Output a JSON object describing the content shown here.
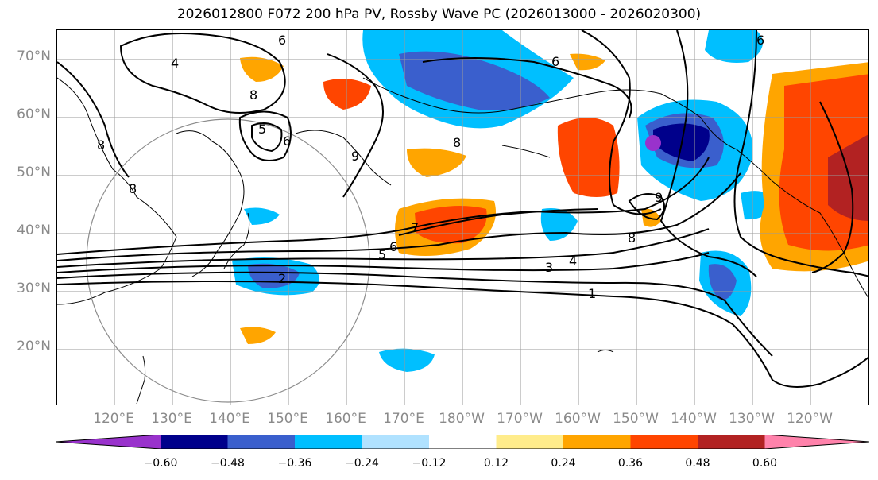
{
  "title": "2026012800 F072 200 hPa PV, Rossby Wave PC (2026013000 - 2026020300)",
  "lat_labels": [
    "70°N",
    "60°N",
    "50°N",
    "40°N",
    "30°N",
    "20°N"
  ],
  "lon_labels": [
    "120°E",
    "130°E",
    "140°E",
    "150°E",
    "160°E",
    "170°E",
    "180°W",
    "170°W",
    "160°W",
    "150°W",
    "140°W",
    "130°W",
    "120°W"
  ],
  "contour_labels": [
    "1",
    "2",
    "3",
    "4",
    "5",
    "6",
    "7",
    "8",
    "6",
    "8",
    "5",
    "6",
    "4",
    "8",
    "9",
    "8",
    "6",
    "6",
    "8",
    "9"
  ],
  "colorbar": {
    "colors": [
      "#9932cc",
      "#00008b",
      "#3a5fcd",
      "#00bfff",
      "#b0e2ff",
      "#ffffff",
      "#ffec8b",
      "#ffa500",
      "#ff4500",
      "#b22222",
      "#ff82ab"
    ],
    "tick_labels": [
      "−0.60",
      "−0.48",
      "−0.36",
      "−0.24",
      "−0.12",
      "0.12",
      "0.24",
      "0.36",
      "0.48",
      "0.60"
    ]
  }
}
